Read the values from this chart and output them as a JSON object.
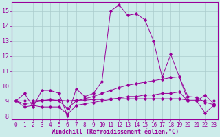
{
  "xlabel": "Windchill (Refroidissement éolien,°C)",
  "background_color": "#ccecea",
  "line_color": "#990099",
  "grid_color": "#aacccc",
  "xlim": [
    -0.5,
    23.5
  ],
  "ylim": [
    7.8,
    15.6
  ],
  "yticks": [
    8,
    9,
    10,
    11,
    12,
    13,
    14,
    15
  ],
  "xticks": [
    0,
    1,
    2,
    3,
    4,
    5,
    6,
    7,
    8,
    9,
    10,
    11,
    12,
    13,
    14,
    15,
    16,
    17,
    18,
    19,
    20,
    21,
    22,
    23
  ],
  "series": [
    [
      9.0,
      9.5,
      8.6,
      9.7,
      9.7,
      9.5,
      8.0,
      9.8,
      9.3,
      9.5,
      10.3,
      15.0,
      15.4,
      14.7,
      14.8,
      14.4,
      13.0,
      10.6,
      12.1,
      10.6,
      9.0,
      9.0,
      9.4,
      8.8
    ],
    [
      9.0,
      8.6,
      8.7,
      8.6,
      8.6,
      8.6,
      8.1,
      8.7,
      8.8,
      8.9,
      9.0,
      9.1,
      9.2,
      9.3,
      9.3,
      9.4,
      9.4,
      9.5,
      9.5,
      9.6,
      9.0,
      9.0,
      8.2,
      8.7
    ],
    [
      9.0,
      8.8,
      8.9,
      9.0,
      9.1,
      9.0,
      8.5,
      9.0,
      9.15,
      9.3,
      9.5,
      9.7,
      9.9,
      10.05,
      10.15,
      10.25,
      10.35,
      10.45,
      10.55,
      10.6,
      9.3,
      9.25,
      8.9,
      8.75
    ],
    [
      9.0,
      9.0,
      9.0,
      9.05,
      9.05,
      9.05,
      9.0,
      9.05,
      9.05,
      9.1,
      9.1,
      9.15,
      9.15,
      9.15,
      9.15,
      9.15,
      9.15,
      9.15,
      9.15,
      9.15,
      9.05,
      9.05,
      9.0,
      9.0
    ]
  ],
  "tick_fontsize": 5.5,
  "xlabel_fontsize": 6.0
}
